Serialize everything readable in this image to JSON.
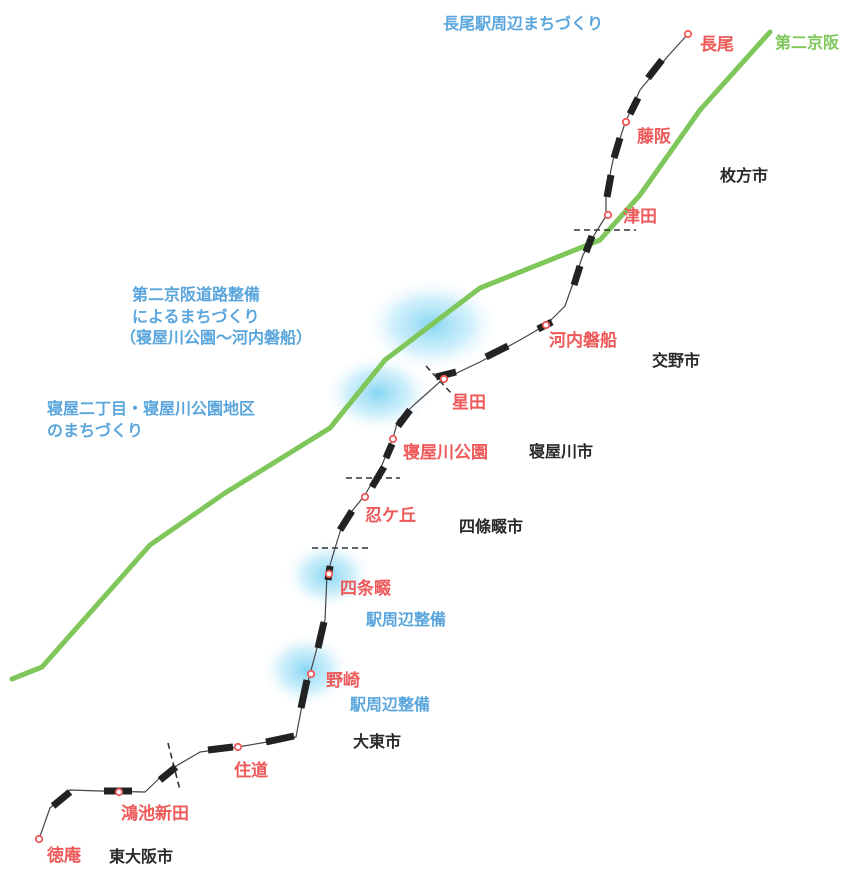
{
  "line_name": "第二京阪",
  "colors": {
    "station": "#ee5a5a",
    "city": "#2a2a2a",
    "project": "#5aa6dc",
    "expressway": "#7fc75a",
    "railway": "#222222",
    "glow": "#7fd3f2"
  },
  "stations": [
    "長尾",
    "藤阪",
    "津田",
    "河内磐船",
    "星田",
    "寝屋川公園",
    "忍ケ丘",
    "四条畷",
    "野崎",
    "住道",
    "鴻池新田",
    "徳庵"
  ],
  "cities": [
    "枚方市",
    "交野市",
    "寝屋川市",
    "四條畷市",
    "大東市",
    "東大阪市"
  ],
  "projects": {
    "nagao": "長尾駅周辺まちづくり",
    "daini": [
      "第二京阪道路整備",
      "によるまちづくり",
      "（寝屋川公園～河内磐船）"
    ],
    "neya": [
      "寝屋二丁目・寝屋川公園地区",
      "のまちづくり"
    ],
    "shijonawate": "駅周辺整備",
    "nozaki": "駅周辺整備"
  }
}
